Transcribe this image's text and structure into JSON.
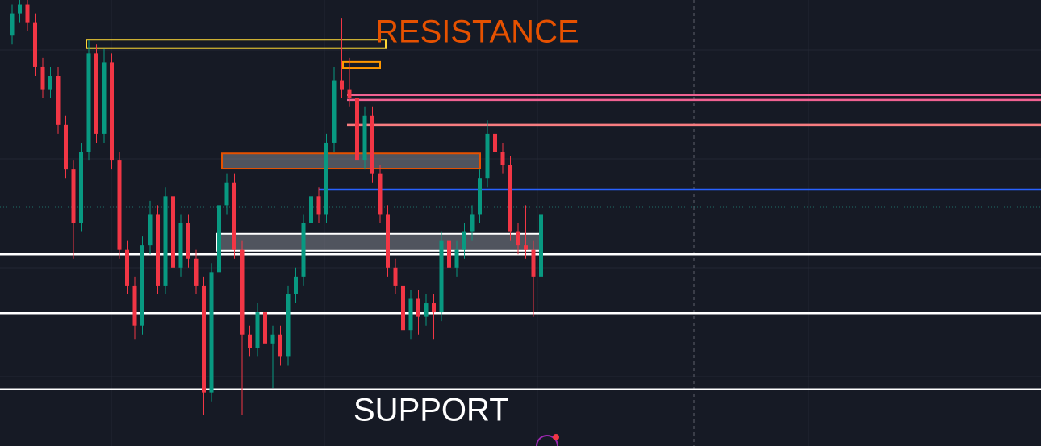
{
  "chart_data": {
    "type": "candlestick",
    "annotations": [
      "RESISTANCE",
      "SUPPORT"
    ],
    "annotation_colors": [
      "#e65100",
      "#ffffff"
    ],
    "ylim": [
      0,
      100
    ],
    "up_color": "#089981",
    "down_color": "#f23645",
    "open": [
      92,
      97,
      99,
      95,
      85,
      80,
      83,
      72,
      62,
      50,
      66,
      88,
      70,
      86,
      64,
      44,
      36,
      27,
      45,
      52,
      36,
      56,
      40,
      50,
      42,
      36,
      12,
      39,
      54,
      59,
      44,
      25,
      22,
      30,
      23,
      25,
      20,
      34,
      38,
      50,
      56,
      52,
      68,
      82,
      80,
      78,
      64,
      74,
      61,
      52,
      40,
      36,
      26,
      33,
      29,
      32,
      30,
      46,
      40,
      44,
      48,
      52,
      60,
      70,
      66,
      63,
      48,
      45,
      44,
      38
    ],
    "high": [
      99,
      100,
      100,
      97,
      87,
      85,
      85,
      74,
      64,
      68,
      91,
      90,
      89,
      88,
      66,
      46,
      38,
      47,
      55,
      54,
      58,
      58,
      52,
      52,
      44,
      38,
      41,
      56,
      61,
      61,
      46,
      27,
      32,
      32,
      27,
      27,
      36,
      40,
      52,
      58,
      58,
      70,
      85,
      96,
      87,
      80,
      76,
      76,
      63,
      54,
      42,
      38,
      35,
      35,
      34,
      34,
      48,
      48,
      46,
      50,
      54,
      62,
      73,
      72,
      68,
      65,
      50,
      54,
      46,
      58
    ],
    "low": [
      90,
      95,
      93,
      83,
      78,
      78,
      70,
      60,
      42,
      48,
      64,
      68,
      68,
      62,
      42,
      34,
      24,
      25,
      43,
      34,
      34,
      38,
      38,
      40,
      34,
      7,
      10,
      37,
      52,
      42,
      7,
      20,
      20,
      21,
      13,
      18,
      18,
      32,
      36,
      48,
      50,
      50,
      66,
      78,
      76,
      62,
      62,
      59,
      50,
      38,
      34,
      16,
      24,
      25,
      27,
      24,
      28,
      38,
      38,
      42,
      46,
      50,
      58,
      64,
      61,
      46,
      43,
      42,
      29,
      36
    ],
    "close": [
      97,
      99,
      95,
      85,
      80,
      83,
      72,
      62,
      50,
      66,
      88,
      70,
      86,
      64,
      44,
      36,
      27,
      45,
      52,
      36,
      56,
      40,
      50,
      42,
      36,
      12,
      39,
      54,
      59,
      44,
      25,
      22,
      30,
      23,
      25,
      20,
      34,
      38,
      50,
      56,
      52,
      68,
      82,
      80,
      78,
      64,
      74,
      61,
      52,
      40,
      36,
      26,
      33,
      29,
      32,
      30,
      46,
      40,
      44,
      48,
      52,
      60,
      70,
      66,
      63,
      48,
      45,
      44,
      38,
      52
    ],
    "levels": [
      {
        "value": 43.0,
        "color": "#ffffff"
      },
      {
        "value": 29.8,
        "color": "#ffffff"
      },
      {
        "value": 12.7,
        "color": "#ffffff"
      },
      {
        "value": 57.5,
        "color": "#2962ff"
      },
      {
        "value": 78.7,
        "color": "#f06292"
      },
      {
        "value": 77.6,
        "color": "#f06292"
      },
      {
        "value": 72.0,
        "color": "#f77c80"
      }
    ],
    "zones": [
      {
        "top": 91.1,
        "bottom": 89.2,
        "color": "#fdd835"
      },
      {
        "top": 86.1,
        "bottom": 84.8,
        "color": "#ff9800"
      },
      {
        "top": 65.6,
        "bottom": 62.2,
        "color": "#e65100"
      },
      {
        "top": 47.6,
        "bottom": 43.8,
        "color": "#ffffff"
      }
    ]
  }
}
